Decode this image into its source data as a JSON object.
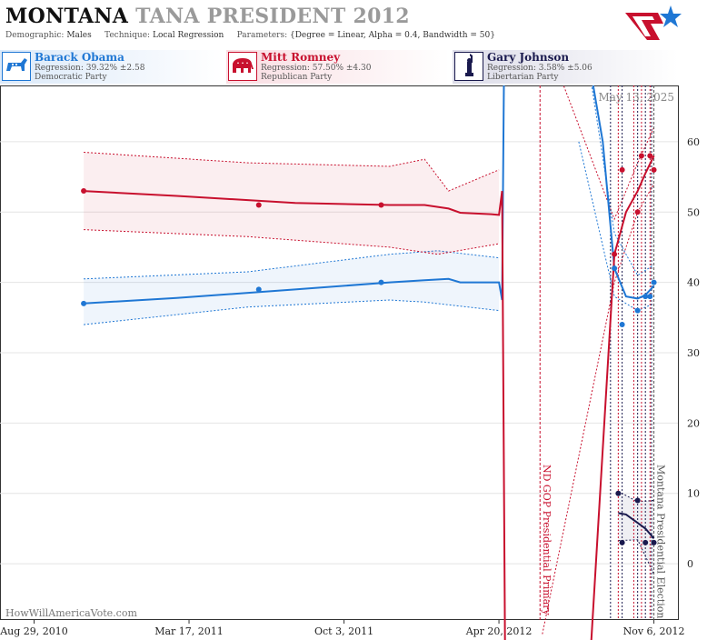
{
  "header": {
    "title_state": "MONTANA",
    "title_rest": "TANA PRESIDENT 2012",
    "demographic_label": "Demographic:",
    "demographic_value": "Males",
    "technique_label": "Technique:",
    "technique_value": "Local Regression",
    "parameters_label": "Parameters:",
    "parameters_value": "{Degree = Linear, Alpha = 0.4, Bandwidth = 50}"
  },
  "candidates": [
    {
      "name": "Barack Obama",
      "regression": "Regression: 39.32% ±2.58",
      "party": "Democratic Party",
      "color": "#1f77d4",
      "icon": "donkey-icon"
    },
    {
      "name": "Mitt Romney",
      "regression": "Regression: 57.50% ±4.30",
      "party": "Republican Party",
      "color": "#c8102e",
      "icon": "elephant-icon"
    },
    {
      "name": "Gary Johnson",
      "regression": "Regression: 3.58% ±5.06",
      "party": "Libertarian Party",
      "color": "#1a1a4e",
      "icon": "liberty-icon"
    }
  ],
  "watermark": "HowWillAmericaVote.com",
  "date_stamp": "May 13, 2025",
  "chart_data": {
    "type": "line",
    "x_tick_labels": [
      "Aug 29, 2010",
      "Mar 17, 2011",
      "Oct 3, 2011",
      "Apr 20, 2012",
      "Nov 6, 2012"
    ],
    "x_ticks": [
      "2010-08-29",
      "2011-03-17",
      "2011-10-03",
      "2012-04-20",
      "2012-11-06"
    ],
    "y_ticks": [
      0,
      10,
      20,
      30,
      40,
      50,
      60
    ],
    "ylim": [
      -8,
      68
    ],
    "xlim": [
      "2010-07-16",
      "2012-12-07"
    ],
    "grid": true,
    "annotations": [
      {
        "label": "ND GOP Presidential Primary",
        "date": "2012-06-12",
        "color": "#c8102e"
      },
      {
        "label": "Montana Presidential Election",
        "date": "2012-11-06",
        "color": "#555555"
      }
    ],
    "poll_dates": [
      "2012-09-11",
      "2012-09-21",
      "2012-09-26",
      "2012-10-11",
      "2012-10-16",
      "2012-10-21",
      "2012-10-26",
      "2012-11-01",
      "2012-11-03"
    ],
    "series": [
      {
        "name": "Barack Obama",
        "color": "#1f77d4",
        "points": [
          [
            "2010-11-01",
            37
          ],
          [
            "2011-06-15",
            39
          ],
          [
            "2011-11-20",
            40
          ],
          [
            "2012-09-16",
            42
          ],
          [
            "2012-09-26",
            34
          ],
          [
            "2012-10-16",
            36
          ],
          [
            "2012-10-26",
            38
          ],
          [
            "2012-11-01",
            38
          ],
          [
            "2012-11-06",
            40
          ]
        ],
        "line": [
          [
            "2010-11-01",
            37.0
          ],
          [
            "2011-03-01",
            37.8
          ],
          [
            "2011-08-01",
            39.0
          ],
          [
            "2011-12-01",
            40.0
          ],
          [
            "2012-01-15",
            40.3
          ],
          [
            "2012-02-15",
            40.5
          ],
          [
            "2012-03-01",
            40.0
          ],
          [
            "2012-04-10",
            40.0
          ],
          [
            "2012-04-20",
            40.0
          ],
          [
            "2012-04-24",
            37.5
          ],
          [
            "2012-04-28",
            90.0
          ]
        ],
        "line2": [
          [
            "2012-08-01",
            80.0
          ],
          [
            "2012-09-01",
            60.0
          ],
          [
            "2012-09-16",
            42.0
          ],
          [
            "2012-10-01",
            38.0
          ],
          [
            "2012-10-16",
            37.7
          ],
          [
            "2012-10-26",
            38.2
          ],
          [
            "2012-11-06",
            39.5
          ]
        ],
        "band_upper": [
          [
            "2010-11-01",
            40.5
          ],
          [
            "2011-06-01",
            41.5
          ],
          [
            "2011-12-01",
            44.0
          ],
          [
            "2012-02-01",
            44.5
          ],
          [
            "2012-04-20",
            43.5
          ]
        ],
        "band_lower": [
          [
            "2010-11-01",
            34.0
          ],
          [
            "2011-06-01",
            36.5
          ],
          [
            "2011-12-01",
            37.5
          ],
          [
            "2012-01-15",
            37.2
          ],
          [
            "2012-04-20",
            36.0
          ]
        ]
      },
      {
        "name": "Mitt Romney",
        "color": "#c8102e",
        "points": [
          [
            "2010-11-01",
            53
          ],
          [
            "2011-06-15",
            51
          ],
          [
            "2011-11-20",
            51
          ],
          [
            "2012-09-16",
            44
          ],
          [
            "2012-09-26",
            56
          ],
          [
            "2012-10-16",
            50
          ],
          [
            "2012-10-21",
            58
          ],
          [
            "2012-11-01",
            58
          ],
          [
            "2012-11-06",
            56
          ]
        ],
        "line": [
          [
            "2010-11-01",
            53.0
          ],
          [
            "2011-03-01",
            52.3
          ],
          [
            "2011-08-01",
            51.3
          ],
          [
            "2011-12-01",
            51.0
          ],
          [
            "2012-01-15",
            51.0
          ],
          [
            "2012-02-15",
            50.5
          ],
          [
            "2012-03-01",
            49.9
          ],
          [
            "2012-04-10",
            49.7
          ],
          [
            "2012-04-20",
            49.6
          ],
          [
            "2012-04-24",
            53.0
          ],
          [
            "2012-04-28",
            -15.0
          ]
        ],
        "line2": [
          [
            "2012-08-15",
            -15.0
          ],
          [
            "2012-09-16",
            44.0
          ],
          [
            "2012-10-01",
            50.0
          ],
          [
            "2012-10-16",
            53.0
          ],
          [
            "2012-10-26",
            55.5
          ],
          [
            "2012-11-06",
            58.0
          ]
        ],
        "band_upper": [
          [
            "2010-11-01",
            58.5
          ],
          [
            "2011-06-01",
            57.0
          ],
          [
            "2011-12-01",
            56.5
          ],
          [
            "2012-01-15",
            57.5
          ],
          [
            "2012-02-15",
            53.0
          ],
          [
            "2012-04-20",
            56.0
          ]
        ],
        "band_lower": [
          [
            "2010-11-01",
            47.5
          ],
          [
            "2011-06-01",
            46.5
          ],
          [
            "2011-12-01",
            45.0
          ],
          [
            "2012-02-01",
            44.0
          ],
          [
            "2012-04-20",
            45.5
          ]
        ]
      },
      {
        "name": "Gary Johnson",
        "color": "#1a1a4e",
        "points": [
          [
            "2012-09-21",
            10
          ],
          [
            "2012-09-26",
            3
          ],
          [
            "2012-10-16",
            9
          ],
          [
            "2012-10-26",
            3
          ],
          [
            "2012-11-06",
            3
          ]
        ],
        "line2": [
          [
            "2012-09-21",
            7.2
          ],
          [
            "2012-10-01",
            7.0
          ],
          [
            "2012-10-16",
            5.8
          ],
          [
            "2012-10-26",
            5.0
          ],
          [
            "2012-11-06",
            3.6
          ]
        ],
        "band_upper": [
          [
            "2012-09-21",
            10.3
          ],
          [
            "2012-10-16",
            8.8
          ],
          [
            "2012-11-06",
            9.0
          ]
        ],
        "band_lower": [
          [
            "2012-09-21",
            3.3
          ],
          [
            "2012-10-16",
            3.4
          ],
          [
            "2012-11-06",
            -1.5
          ]
        ]
      }
    ]
  }
}
